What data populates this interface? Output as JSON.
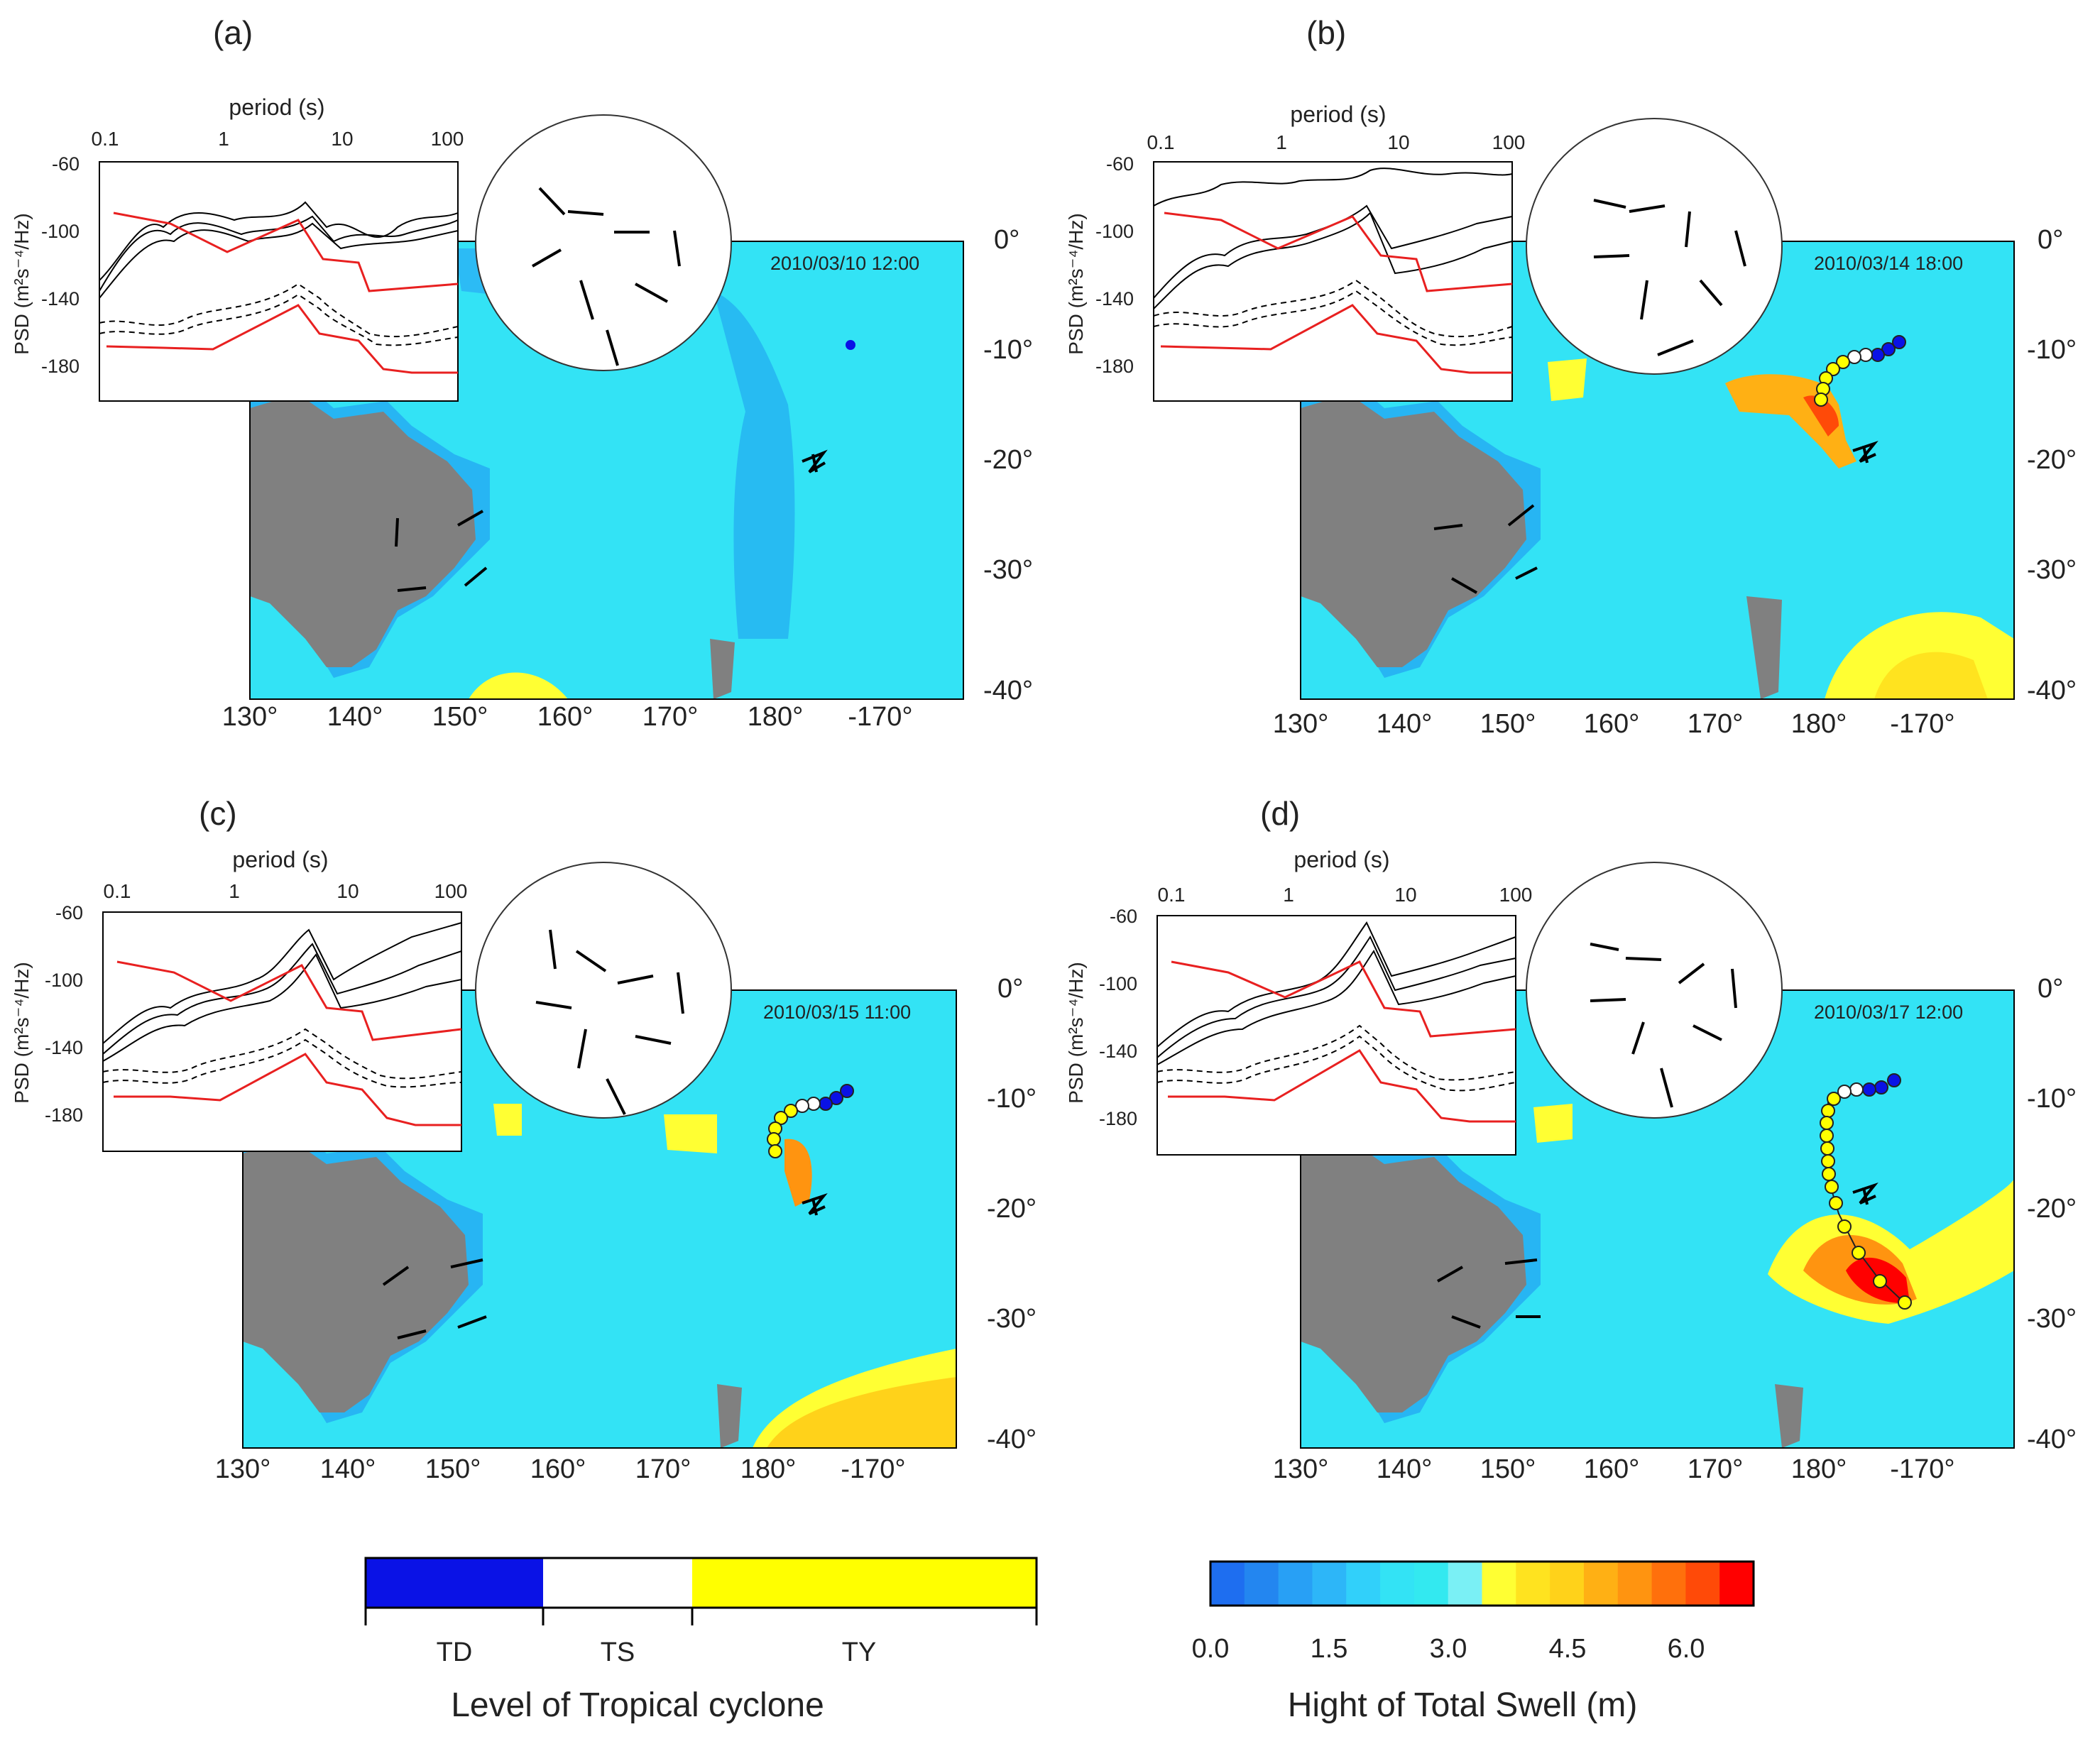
{
  "figure": {
    "panels": [
      {
        "label": "(a)",
        "timestamp": "2010/03/10 12:00"
      },
      {
        "label": "(b)",
        "timestamp": "2010/03/14 18:00"
      },
      {
        "label": "(c)",
        "timestamp": "2010/03/15 11:00"
      },
      {
        "label": "(d)",
        "timestamp": "2010/03/17 12:00"
      }
    ],
    "map_x_ticks": [
      "130°",
      "140°",
      "150°",
      "160°",
      "170°",
      "180°",
      "-170°"
    ],
    "map_y_ticks": [
      "0°",
      "-10°",
      "-20°",
      "-30°",
      "-40°"
    ],
    "inset": {
      "title": "period (s)",
      "x_ticks": [
        "0.1",
        "1",
        "10",
        "100"
      ],
      "y_ticks": [
        "-60",
        "-100",
        "-140",
        "-180"
      ],
      "y_label": "PSD (m²s⁻⁴/Hz)"
    }
  },
  "legend_cyclone": {
    "title": "Level of Tropical cyclone",
    "categories": [
      "TD",
      "TS",
      "TY"
    ],
    "colors": [
      "#0a12e6",
      "#ffffff",
      "#ffff00"
    ]
  },
  "legend_swell": {
    "title": "Hight of Total Swell (m)",
    "tick_labels": [
      "0.0",
      "1.5",
      "3.0",
      "4.5",
      "6.0"
    ],
    "colors": [
      "#1e6ef0",
      "#2386f0",
      "#28a0f5",
      "#2db6f8",
      "#31d0fa",
      "#33e3f5",
      "#33e9f0",
      "#7af0f5",
      "#ffff33",
      "#ffe31f",
      "#ffd21a",
      "#ffb014",
      "#ff9410",
      "#ff700c",
      "#ff4a08",
      "#ff0000"
    ]
  },
  "colors": {
    "land": "#808080",
    "ocean": "#33e3f5",
    "psd_reference": "#e82020",
    "track_outline": "#222222"
  }
}
